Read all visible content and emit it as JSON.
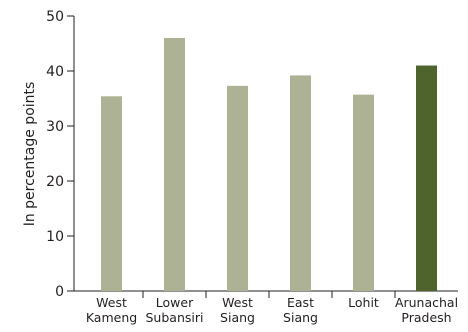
{
  "chart_data": {
    "type": "bar",
    "categories": [
      [
        "West",
        "Kameng"
      ],
      [
        "Lower",
        "Subansiri"
      ],
      [
        "West",
        "Siang"
      ],
      [
        "East",
        "Siang"
      ],
      [
        "Lohit"
      ],
      [
        "Arunachal",
        "Pradesh"
      ]
    ],
    "values": [
      35.4,
      46.0,
      37.3,
      39.2,
      35.7,
      41.0
    ],
    "highlight_index": 5,
    "ylabel": "In percentage points",
    "xlabel": "",
    "ylim": [
      0,
      50
    ],
    "yticks": [
      0,
      10,
      20,
      30,
      40,
      50
    ],
    "grid": false,
    "colors": {
      "bar": "#adb294",
      "highlight": "#4f642c",
      "axis": "#231f20"
    }
  }
}
